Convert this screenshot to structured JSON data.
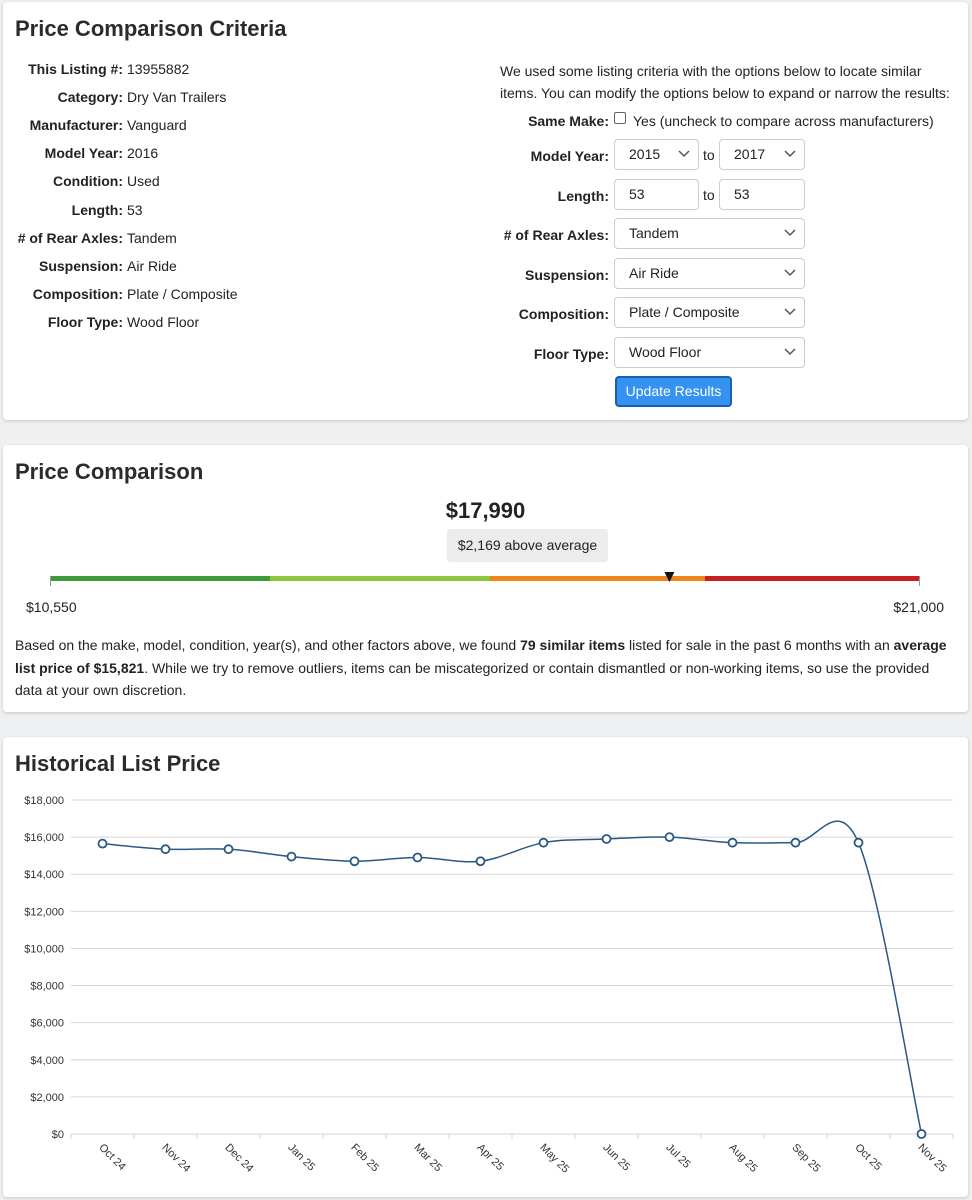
{
  "criteria": {
    "title": "Price Comparison Criteria",
    "listing": [
      {
        "label": "This Listing #:",
        "value": "13955882"
      },
      {
        "label": "Category:",
        "value": "Dry Van Trailers"
      },
      {
        "label": "Manufacturer:",
        "value": "Vanguard"
      },
      {
        "label": "Model Year:",
        "value": "2016"
      },
      {
        "label": "Condition:",
        "value": "Used"
      },
      {
        "label": "Length:",
        "value": "53"
      },
      {
        "label": "# of Rear Axles:",
        "value": "Tandem"
      },
      {
        "label": "Suspension:",
        "value": "Air Ride"
      },
      {
        "label": "Composition:",
        "value": "Plate / Composite"
      },
      {
        "label": "Floor Type:",
        "value": "Wood Floor"
      }
    ],
    "intro": "We used some listing criteria with the options below to locate similar items. You can modify the options below to expand or narrow the results:",
    "same_make": {
      "label": "Same Make:",
      "text": "Yes (uncheck to compare across manufacturers)"
    },
    "ranges": [
      {
        "label": "Model Year:",
        "from": "2015",
        "separator": "to",
        "to": "2017",
        "select": true
      },
      {
        "label": "Length:",
        "from": "53",
        "separator": "to",
        "to": "53",
        "select": false
      }
    ],
    "selects": [
      {
        "label": "# of Rear Axles:",
        "value": "Tandem"
      },
      {
        "label": "Suspension:",
        "value": "Air Ride"
      },
      {
        "label": "Composition:",
        "value": "Plate / Composite"
      },
      {
        "label": "Floor Type:",
        "value": "Wood Floor"
      }
    ],
    "button": "Update Results"
  },
  "comparison": {
    "title": "Price Comparison",
    "price": {
      "value": 17990,
      "label": "$17,990"
    },
    "badge": "$2,169 above average",
    "min": {
      "value": 10550,
      "label": "$10,550"
    },
    "max": {
      "value": 21000,
      "label": "$21,000"
    },
    "text": [
      "Based on the make, model, condition, year(s), and other factors above, we found ",
      "79 similar items",
      " listed for sale in the past 6 months with an ",
      "average list price of $15,821",
      ". While we try to remove outliers, items can be miscategorized or contain dismantled or non-working items, so use the provided data at your own discretion."
    ]
  },
  "chart_data": {
    "type": "line",
    "title": "Historical List Price",
    "categories": [
      "Oct 24",
      "Nov 24",
      "Dec 24",
      "Jan 25",
      "Feb 25",
      "Mar 25",
      "Apr 25",
      "May 25",
      "Jun 25",
      "Jul 25",
      "Aug 25",
      "Sep 25",
      "Oct 25",
      "Nov 25"
    ],
    "values": [
      15650,
      15350,
      15350,
      14950,
      14700,
      14900,
      14700,
      15700,
      15900,
      16000,
      15700,
      15700,
      15700,
      0
    ],
    "color": "#2a5783",
    "ylim": [
      0,
      18000
    ],
    "yticks": [
      {
        "value": 0,
        "label": "$0"
      },
      {
        "value": 2000,
        "label": "$2,000"
      },
      {
        "value": 4000,
        "label": "$4,000"
      },
      {
        "value": 6000,
        "label": "$6,000"
      },
      {
        "value": 8000,
        "label": "$8,000"
      },
      {
        "value": 10000,
        "label": "$10,000"
      },
      {
        "value": 12000,
        "label": "$12,000"
      },
      {
        "value": 14000,
        "label": "$14,000"
      },
      {
        "value": 16000,
        "label": "$16,000"
      },
      {
        "value": 18000,
        "label": "$18,000"
      }
    ],
    "grid": true
  }
}
